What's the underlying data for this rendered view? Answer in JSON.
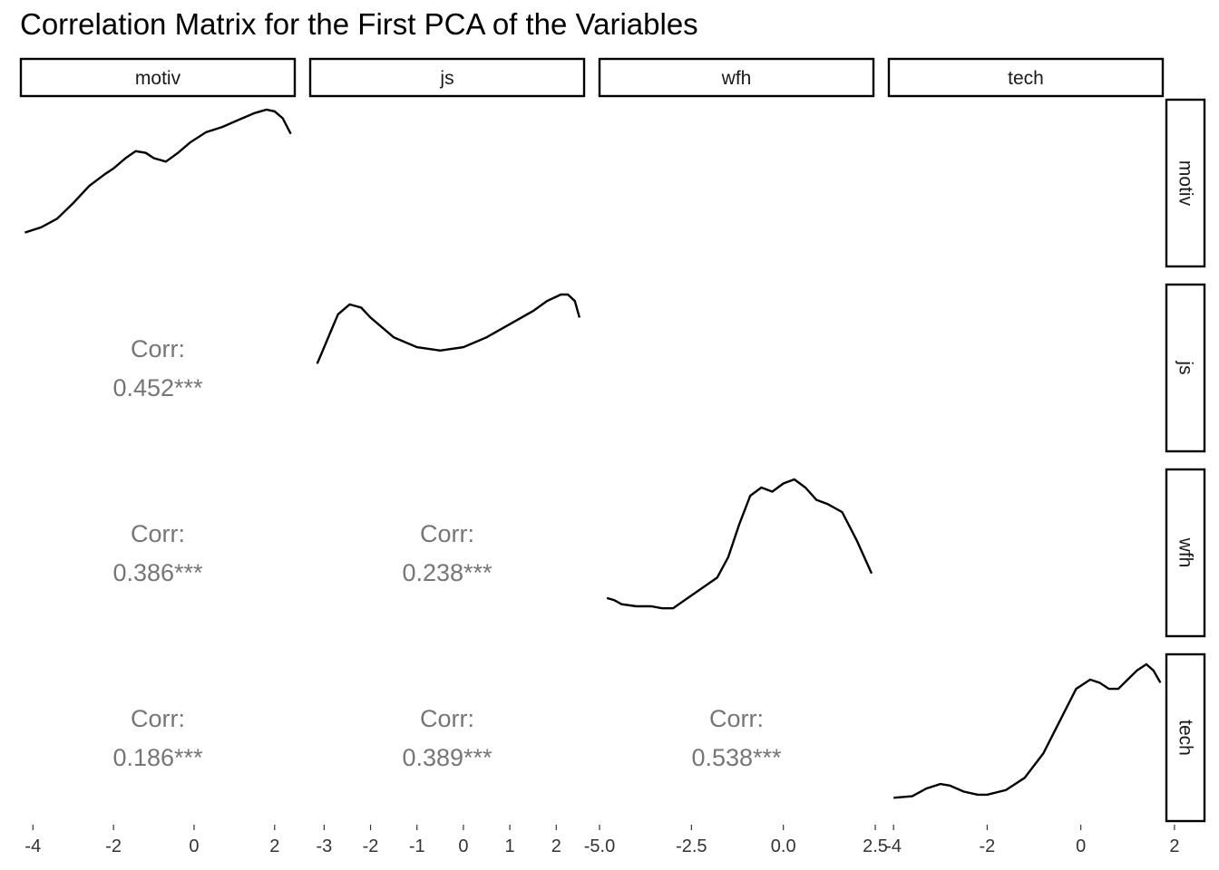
{
  "title": "Correlation Matrix for the First PCA of the Variables",
  "chart_data": {
    "type": "pairs",
    "variables": [
      "motiv",
      "js",
      "wfh",
      "tech"
    ],
    "corr_label": "Corr:",
    "correlations": [
      {
        "row": "js",
        "col": "motiv",
        "value": 0.452,
        "text": "0.452***"
      },
      {
        "row": "wfh",
        "col": "motiv",
        "value": 0.386,
        "text": "0.386***"
      },
      {
        "row": "wfh",
        "col": "js",
        "value": 0.238,
        "text": "0.238***"
      },
      {
        "row": "tech",
        "col": "motiv",
        "value": 0.186,
        "text": "0.186***"
      },
      {
        "row": "tech",
        "col": "js",
        "value": 0.389,
        "text": "0.389***"
      },
      {
        "row": "tech",
        "col": "wfh",
        "value": 0.538,
        "text": "0.538***"
      }
    ],
    "x_axes": [
      {
        "variable": "motiv",
        "xlim": [
          -4.3,
          2.5
        ],
        "ticks": [
          -4,
          -2,
          0,
          2
        ],
        "tick_labels": [
          "-4",
          "-2",
          "0",
          "2"
        ]
      },
      {
        "variable": "js",
        "xlim": [
          -3.3,
          2.6
        ],
        "ticks": [
          -3,
          -2,
          -1,
          0,
          1,
          2
        ],
        "tick_labels": [
          "-3",
          "-2",
          "-1",
          "0",
          "1",
          "2"
        ]
      },
      {
        "variable": "wfh",
        "xlim": [
          -5.0,
          2.45
        ],
        "ticks": [
          -5.0,
          -2.5,
          0.0,
          2.5
        ],
        "tick_labels": [
          "-5.0",
          "-2.5",
          "0.0",
          "2.5"
        ]
      },
      {
        "variable": "tech",
        "xlim": [
          -4.1,
          1.75
        ],
        "ticks": [
          -4,
          -2,
          0,
          2
        ],
        "tick_labels": [
          "-4",
          "-2",
          "0",
          "2"
        ]
      }
    ],
    "densities": [
      {
        "variable": "motiv",
        "x": [
          -4.2,
          -3.8,
          -3.4,
          -3.0,
          -2.6,
          -2.2,
          -2.0,
          -1.7,
          -1.45,
          -1.2,
          -1.0,
          -0.7,
          -0.4,
          -0.1,
          0.3,
          0.7,
          1.1,
          1.5,
          1.8,
          2.0,
          2.2,
          2.4
        ],
        "y": [
          0.07,
          0.1,
          0.15,
          0.24,
          0.34,
          0.41,
          0.44,
          0.5,
          0.54,
          0.53,
          0.5,
          0.48,
          0.53,
          0.59,
          0.65,
          0.68,
          0.72,
          0.76,
          0.78,
          0.77,
          0.73,
          0.64
        ]
      },
      {
        "variable": "js",
        "x": [
          -3.15,
          -3.0,
          -2.85,
          -2.7,
          -2.45,
          -2.2,
          -2.0,
          -1.5,
          -1.0,
          -0.5,
          0.0,
          0.5,
          1.0,
          1.5,
          1.8,
          2.1,
          2.25,
          2.4,
          2.5
        ],
        "y": [
          0.2,
          0.25,
          0.3,
          0.35,
          0.38,
          0.37,
          0.34,
          0.28,
          0.25,
          0.24,
          0.25,
          0.28,
          0.32,
          0.36,
          0.39,
          0.41,
          0.41,
          0.39,
          0.34
        ]
      },
      {
        "variable": "wfh",
        "x": [
          -4.8,
          -4.6,
          -4.4,
          -4.0,
          -3.6,
          -3.3,
          -3.0,
          -2.6,
          -2.2,
          -1.8,
          -1.5,
          -1.2,
          -0.9,
          -0.6,
          -0.3,
          0.0,
          0.3,
          0.6,
          0.9,
          1.2,
          1.6,
          2.0,
          2.4
        ],
        "y": [
          0.04,
          0.035,
          0.025,
          0.02,
          0.02,
          0.015,
          0.015,
          0.04,
          0.065,
          0.09,
          0.14,
          0.22,
          0.29,
          0.31,
          0.3,
          0.32,
          0.33,
          0.31,
          0.28,
          0.27,
          0.25,
          0.18,
          0.1
        ]
      },
      {
        "variable": "tech",
        "x": [
          -4.0,
          -3.6,
          -3.3,
          -3.0,
          -2.8,
          -2.5,
          -2.2,
          -2.0,
          -1.6,
          -1.2,
          -0.8,
          -0.4,
          -0.1,
          0.2,
          0.4,
          0.6,
          0.8,
          1.0,
          1.2,
          1.4,
          1.55,
          1.7
        ],
        "y": [
          0.005,
          0.01,
          0.035,
          0.05,
          0.045,
          0.025,
          0.015,
          0.015,
          0.03,
          0.07,
          0.15,
          0.27,
          0.36,
          0.39,
          0.38,
          0.36,
          0.36,
          0.39,
          0.42,
          0.44,
          0.42,
          0.38
        ]
      }
    ]
  }
}
